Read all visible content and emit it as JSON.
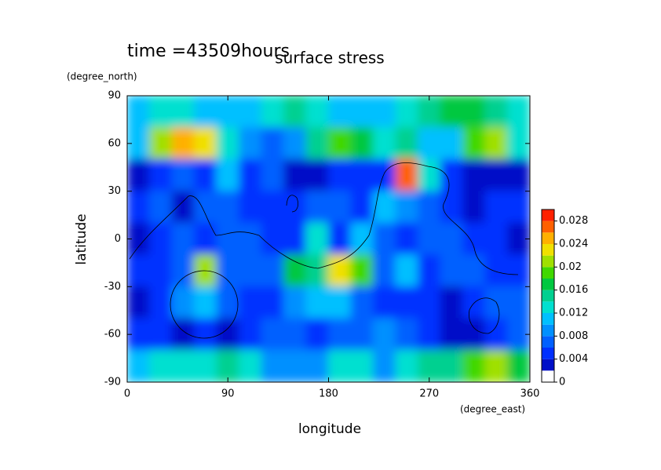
{
  "chart_data": {
    "type": "contour",
    "title": "surface stress",
    "subtitle": "time =43509hours",
    "x_label": "longitude",
    "x_unit": "(degree_east)",
    "y_label": "latitude",
    "y_unit": "(degree_north)",
    "xlim": [
      0,
      360
    ],
    "xticks": [
      0,
      90,
      180,
      270,
      360
    ],
    "ylim": [
      -90,
      90
    ],
    "yticks": [
      -90,
      -60,
      -30,
      0,
      30,
      60,
      90
    ],
    "z": [
      [
        0.01,
        0.012,
        0.012,
        0.01,
        0.01,
        0.01,
        0.012,
        0.014,
        0.012,
        0.01,
        0.01,
        0.01,
        0.012,
        0.014,
        0.016,
        0.016,
        0.014,
        0.012
      ],
      [
        0.01,
        0.02,
        0.024,
        0.022,
        0.012,
        0.008,
        0.006,
        0.008,
        0.014,
        0.018,
        0.016,
        0.012,
        0.014,
        0.01,
        0.01,
        0.018,
        0.02,
        0.012
      ],
      [
        0.002,
        0.004,
        0.006,
        0.004,
        0.01,
        0.004,
        0.006,
        0.002,
        0.002,
        0.004,
        0.004,
        0.004,
        0.026,
        0.012,
        0.004,
        0.002,
        0.002,
        0.002
      ],
      [
        0.004,
        0.006,
        0.002,
        0.006,
        0.006,
        0.004,
        0.004,
        0.004,
        0.006,
        0.006,
        0.004,
        0.01,
        0.008,
        0.006,
        0.004,
        0.002,
        0.004,
        0.004
      ],
      [
        0.002,
        0.004,
        0.006,
        0.004,
        0.006,
        0.006,
        0.004,
        0.004,
        0.012,
        0.004,
        0.01,
        0.006,
        0.004,
        0.006,
        0.006,
        0.004,
        0.004,
        0.002
      ],
      [
        0.004,
        0.004,
        0.006,
        0.02,
        0.006,
        0.006,
        0.006,
        0.016,
        0.014,
        0.022,
        0.018,
        0.006,
        0.01,
        0.004,
        0.006,
        0.006,
        0.004,
        0.004
      ],
      [
        0.002,
        0.004,
        0.008,
        0.01,
        0.006,
        0.004,
        0.004,
        0.008,
        0.01,
        0.01,
        0.006,
        0.004,
        0.004,
        0.004,
        0.002,
        0.004,
        0.006,
        0.006
      ],
      [
        0.004,
        0.004,
        0.002,
        0.004,
        0.002,
        0.004,
        0.006,
        0.006,
        0.004,
        0.006,
        0.006,
        0.008,
        0.006,
        0.004,
        0.002,
        0.002,
        0.004,
        0.006
      ],
      [
        0.01,
        0.012,
        0.012,
        0.012,
        0.014,
        0.012,
        0.008,
        0.008,
        0.008,
        0.012,
        0.012,
        0.008,
        0.012,
        0.014,
        0.014,
        0.018,
        0.02,
        0.016
      ]
    ],
    "levels": [
      0,
      0.002,
      0.004,
      0.006,
      0.008,
      0.01,
      0.012,
      0.014,
      0.016,
      0.018,
      0.02,
      0.022,
      0.024,
      0.026,
      0.028,
      0.03
    ],
    "colors": [
      "#ffffff",
      "#0010c8",
      "#0030ff",
      "#0060ff",
      "#0090ff",
      "#00c0ff",
      "#00e0d0",
      "#00d090",
      "#00c840",
      "#40d800",
      "#a0e000",
      "#f0e000",
      "#ffb000",
      "#ff6000",
      "#ff2000"
    ],
    "cticks": [
      0,
      0.004,
      0.008,
      0.012,
      0.016,
      0.02,
      0.024,
      0.028
    ]
  }
}
